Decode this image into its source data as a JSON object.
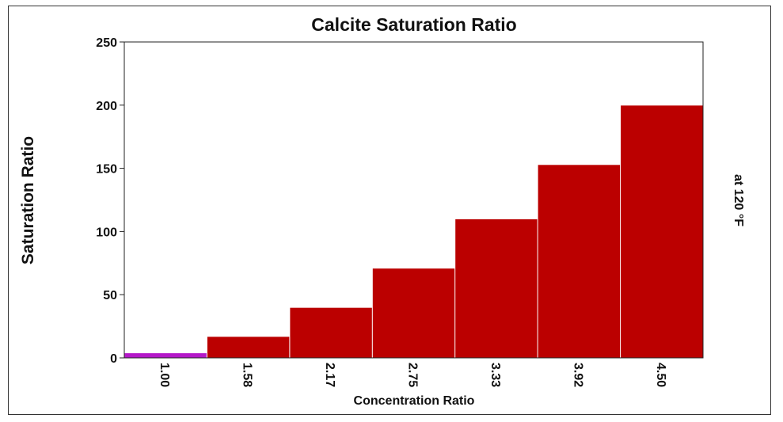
{
  "chart_data": {
    "type": "bar",
    "title": "Calcite Saturation Ratio",
    "xlabel": "Concentration Ratio",
    "ylabel": "Saturation Ratio",
    "annotation": "at 120 °F",
    "categories": [
      "1.00",
      "1.58",
      "2.17",
      "2.75",
      "3.33",
      "3.92",
      "4.50"
    ],
    "values": [
      4,
      17,
      40,
      71,
      110,
      153,
      200
    ],
    "colors": [
      "#b418c8",
      "#bb0000",
      "#bb0000",
      "#bb0000",
      "#bb0000",
      "#bb0000",
      "#bb0000"
    ],
    "ylim": [
      0,
      250
    ],
    "yticks": [
      "0",
      "50",
      "100",
      "150",
      "200",
      "250"
    ],
    "grid": false,
    "legend": "none"
  }
}
